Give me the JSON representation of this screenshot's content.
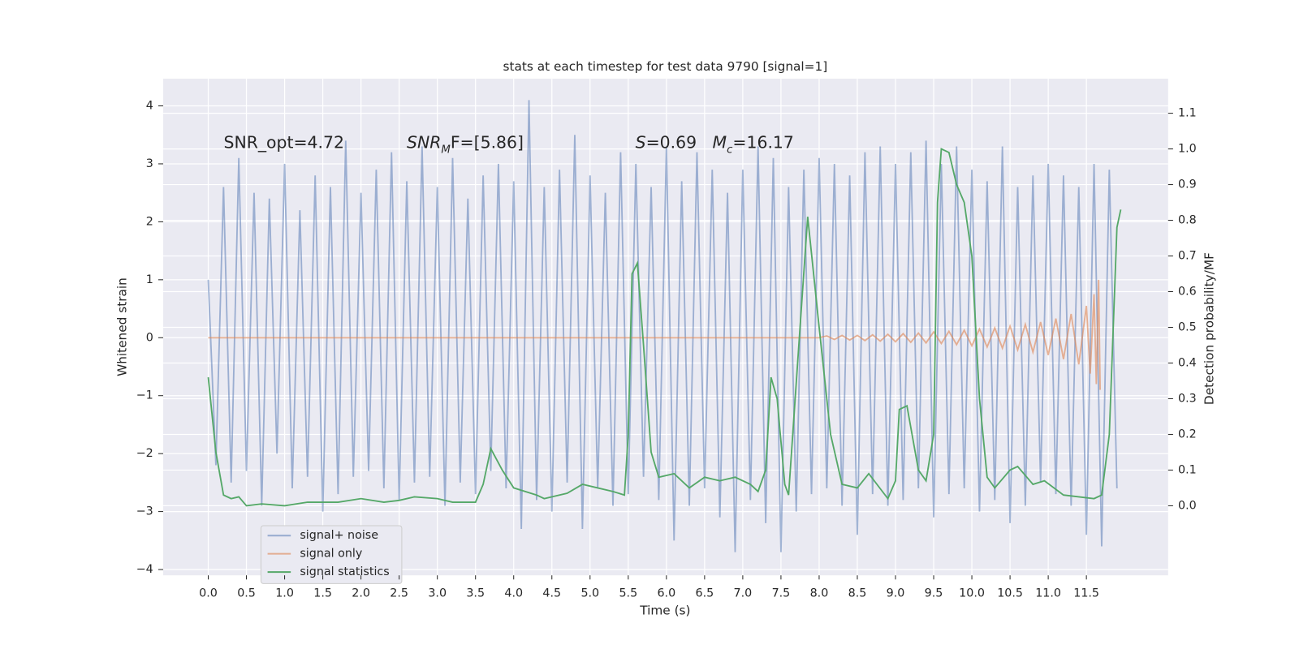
{
  "chart_data": {
    "type": "line",
    "title": "stats at each timestep for test data 9790 [signal=1]",
    "x_label": "Time (s)",
    "y_label": "Whitened strain",
    "y2_label": "Detection probability/MF",
    "xlim": [
      -0.59,
      12.57
    ],
    "ylim": [
      -4.1,
      4.47
    ],
    "y2lim": [
      -0.195,
      1.197
    ],
    "xticks": [
      {
        "value": 0,
        "label": "0.0"
      },
      {
        "value": 0.5,
        "label": "0.5"
      },
      {
        "value": 1,
        "label": "1.0"
      },
      {
        "value": 1.5,
        "label": "1.5"
      },
      {
        "value": 2,
        "label": "2.0"
      },
      {
        "value": 2.5,
        "label": "2.5"
      },
      {
        "value": 3,
        "label": "3.0"
      },
      {
        "value": 3.5,
        "label": "3.5"
      },
      {
        "value": 4,
        "label": "4.0"
      },
      {
        "value": 4.5,
        "label": "4.5"
      },
      {
        "value": 5,
        "label": "5.0"
      },
      {
        "value": 5.5,
        "label": "5.5"
      },
      {
        "value": 6,
        "label": "6.0"
      },
      {
        "value": 6.5,
        "label": "6.5"
      },
      {
        "value": 7,
        "label": "7.0"
      },
      {
        "value": 7.5,
        "label": "7.5"
      },
      {
        "value": 8,
        "label": "8.0"
      },
      {
        "value": 8.5,
        "label": "8.5"
      },
      {
        "value": 9,
        "label": "9.0"
      },
      {
        "value": 9.5,
        "label": "9.5"
      },
      {
        "value": 10,
        "label": "10.0"
      },
      {
        "value": 10.5,
        "label": "10.5"
      },
      {
        "value": 11,
        "label": "11.0"
      },
      {
        "value": 11.5,
        "label": "11.5"
      }
    ],
    "yticks": [
      {
        "value": -4,
        "label": "−4"
      },
      {
        "value": -3,
        "label": "−3"
      },
      {
        "value": -2,
        "label": "−2"
      },
      {
        "value": -1,
        "label": "−1"
      },
      0,
      1,
      2,
      3,
      4
    ],
    "y2ticks": [
      {
        "value": 0,
        "label": "0.0"
      },
      {
        "value": 0.1,
        "label": "0.1"
      },
      {
        "value": 0.2,
        "label": "0.2"
      },
      {
        "value": 0.3,
        "label": "0.3"
      },
      {
        "value": 0.4,
        "label": "0.4"
      },
      {
        "value": 0.5,
        "label": "0.5"
      },
      {
        "value": 0.6,
        "label": "0.6"
      },
      {
        "value": 0.7,
        "label": "0.7"
      },
      {
        "value": 0.8,
        "label": "0.8"
      },
      {
        "value": 0.9,
        "label": "0.9"
      },
      {
        "value": 1,
        "label": "1.0"
      },
      {
        "value": 1.1,
        "label": "1.1"
      }
    ],
    "grid": true,
    "legend": "lower left",
    "annotations": [
      [
        {
          "text": "SNR_opt=4.72"
        }
      ],
      [
        {
          "text": "SNR",
          "italic": true
        },
        {
          "text": "M",
          "italic": true,
          "sub": true
        },
        {
          "text": "F=[5.86]"
        }
      ],
      [
        {
          "text": "S",
          "italic": true
        },
        {
          "text": "=0.69   "
        },
        {
          "text": "M",
          "italic": true
        },
        {
          "text": "c",
          "italic": true,
          "sub": true
        },
        {
          "text": "=16.17"
        }
      ]
    ],
    "series": [
      {
        "name": "signal+ noise",
        "color": "#4c72b0",
        "opacity": 0.5,
        "axis": "y",
        "x": [
          0,
          0.1,
          0.2,
          0.3,
          0.4,
          0.5,
          0.6,
          0.7,
          0.8,
          0.9,
          1,
          1.1,
          1.2,
          1.3,
          1.4,
          1.5,
          1.6,
          1.7,
          1.8,
          1.9,
          2,
          2.1,
          2.2,
          2.3,
          2.4,
          2.5,
          2.6,
          2.7,
          2.8,
          2.9,
          3,
          3.1,
          3.2,
          3.3,
          3.4,
          3.5,
          3.6,
          3.7,
          3.8,
          3.9,
          4,
          4.1,
          4.2,
          4.3,
          4.4,
          4.5,
          4.6,
          4.7,
          4.8,
          4.9,
          5,
          5.1,
          5.2,
          5.3,
          5.4,
          5.5,
          5.6,
          5.7,
          5.8,
          5.9,
          6,
          6.1,
          6.2,
          6.3,
          6.4,
          6.5,
          6.6,
          6.7,
          6.8,
          6.9,
          7,
          7.1,
          7.2,
          7.3,
          7.4,
          7.5,
          7.6,
          7.7,
          7.8,
          7.9,
          8,
          8.1,
          8.2,
          8.3,
          8.4,
          8.5,
          8.6,
          8.7,
          8.8,
          8.9,
          9,
          9.1,
          9.2,
          9.3,
          9.4,
          9.5,
          9.6,
          9.7,
          9.8,
          9.9,
          10,
          10.1,
          10.2,
          10.3,
          10.4,
          10.5,
          10.6,
          10.7,
          10.8,
          10.9,
          11,
          11.1,
          11.2,
          11.3,
          11.4,
          11.5,
          11.6,
          11.7,
          11.8,
          11.9
        ],
        "values": [
          1.0,
          -2.2,
          2.6,
          -2.5,
          3.1,
          -2.3,
          2.5,
          -2.9,
          2.4,
          -2.0,
          3.0,
          -2.6,
          2.2,
          -2.4,
          2.8,
          -3.0,
          2.6,
          -2.7,
          3.4,
          -2.4,
          2.5,
          -2.3,
          2.9,
          -2.6,
          3.2,
          -2.8,
          2.7,
          -2.5,
          3.3,
          -2.4,
          2.6,
          -2.9,
          3.1,
          -2.5,
          2.4,
          -2.7,
          2.8,
          -2.3,
          3.0,
          -2.6,
          2.7,
          -3.3,
          4.1,
          -2.8,
          2.6,
          -3.0,
          2.9,
          -2.5,
          3.5,
          -3.3,
          2.8,
          -2.6,
          2.5,
          -2.9,
          3.2,
          -2.7,
          3.0,
          -2.4,
          2.6,
          -2.8,
          3.3,
          -3.5,
          2.7,
          -2.9,
          3.2,
          -2.6,
          2.9,
          -3.1,
          2.5,
          -3.7,
          2.9,
          -2.8,
          3.3,
          -3.2,
          3.1,
          -3.7,
          2.6,
          -3.0,
          2.9,
          -2.7,
          3.1,
          -2.6,
          3.0,
          -2.9,
          2.8,
          -3.4,
          3.2,
          -2.7,
          3.3,
          -2.9,
          3.0,
          -2.8,
          3.2,
          -2.6,
          3.4,
          -3.1,
          3.0,
          -2.7,
          3.3,
          -2.6,
          2.9,
          -3.0,
          2.7,
          -2.8,
          3.3,
          -3.2,
          2.6,
          -2.9,
          2.8,
          -2.5,
          3.0,
          -2.7,
          2.8,
          -2.9,
          2.6,
          -3.4,
          3.0,
          -3.6,
          2.9,
          -2.6
        ]
      },
      {
        "name": "signal only",
        "color": "#dd8452",
        "opacity": 0.6,
        "axis": "y",
        "x": [
          0,
          8.0,
          8.1,
          8.2,
          8.3,
          8.4,
          8.5,
          8.6,
          8.7,
          8.8,
          8.9,
          9.0,
          9.1,
          9.2,
          9.3,
          9.4,
          9.5,
          9.6,
          9.7,
          9.8,
          9.9,
          10.0,
          10.1,
          10.2,
          10.3,
          10.4,
          10.5,
          10.6,
          10.7,
          10.8,
          10.9,
          11.0,
          11.1,
          11.2,
          11.3,
          11.4,
          11.5,
          11.55,
          11.6,
          11.63,
          11.66,
          11.68
        ],
        "values": [
          0,
          0,
          0.03,
          -0.03,
          0.04,
          -0.04,
          0.04,
          -0.05,
          0.05,
          -0.06,
          0.06,
          -0.07,
          0.07,
          -0.08,
          0.08,
          -0.09,
          0.1,
          -0.1,
          0.11,
          -0.12,
          0.13,
          -0.14,
          0.15,
          -0.16,
          0.17,
          -0.18,
          0.2,
          -0.21,
          0.23,
          -0.25,
          0.27,
          -0.3,
          0.33,
          -0.37,
          0.41,
          -0.46,
          0.55,
          -0.62,
          0.75,
          -0.8,
          1.0,
          -0.9
        ]
      },
      {
        "name": "signal statistics",
        "color": "#55a868",
        "opacity": 1,
        "axis": "y2",
        "x": [
          0,
          0.1,
          0.2,
          0.3,
          0.4,
          0.5,
          0.7,
          1.0,
          1.3,
          1.7,
          2.0,
          2.3,
          2.5,
          2.7,
          3.0,
          3.2,
          3.5,
          3.6,
          3.7,
          3.85,
          4.0,
          4.3,
          4.4,
          4.7,
          4.9,
          5.1,
          5.3,
          5.45,
          5.5,
          5.55,
          5.62,
          5.7,
          5.8,
          5.9,
          6.1,
          6.3,
          6.5,
          6.7,
          6.9,
          7.1,
          7.2,
          7.3,
          7.37,
          7.45,
          7.55,
          7.6,
          7.75,
          7.85,
          8.0,
          8.15,
          8.3,
          8.5,
          8.65,
          8.9,
          9.0,
          9.05,
          9.15,
          9.3,
          9.4,
          9.5,
          9.55,
          9.6,
          9.7,
          9.8,
          9.9,
          10.0,
          10.1,
          10.2,
          10.3,
          10.5,
          10.6,
          10.8,
          10.95,
          11.2,
          11.4,
          11.6,
          11.7,
          11.8,
          11.9,
          11.95
        ],
        "values": [
          0.36,
          0.15,
          0.03,
          0.02,
          0.025,
          0.0,
          0.005,
          0.0,
          0.01,
          0.01,
          0.02,
          0.01,
          0.015,
          0.025,
          0.02,
          0.01,
          0.01,
          0.06,
          0.16,
          0.1,
          0.05,
          0.03,
          0.02,
          0.035,
          0.06,
          0.05,
          0.04,
          0.03,
          0.2,
          0.65,
          0.68,
          0.45,
          0.15,
          0.08,
          0.09,
          0.05,
          0.08,
          0.07,
          0.08,
          0.06,
          0.04,
          0.1,
          0.36,
          0.3,
          0.06,
          0.03,
          0.5,
          0.81,
          0.5,
          0.2,
          0.06,
          0.05,
          0.09,
          0.02,
          0.07,
          0.27,
          0.28,
          0.1,
          0.07,
          0.2,
          0.85,
          1.0,
          0.99,
          0.9,
          0.85,
          0.7,
          0.3,
          0.08,
          0.05,
          0.1,
          0.11,
          0.06,
          0.07,
          0.03,
          0.025,
          0.02,
          0.03,
          0.2,
          0.78,
          0.83
        ]
      }
    ]
  }
}
